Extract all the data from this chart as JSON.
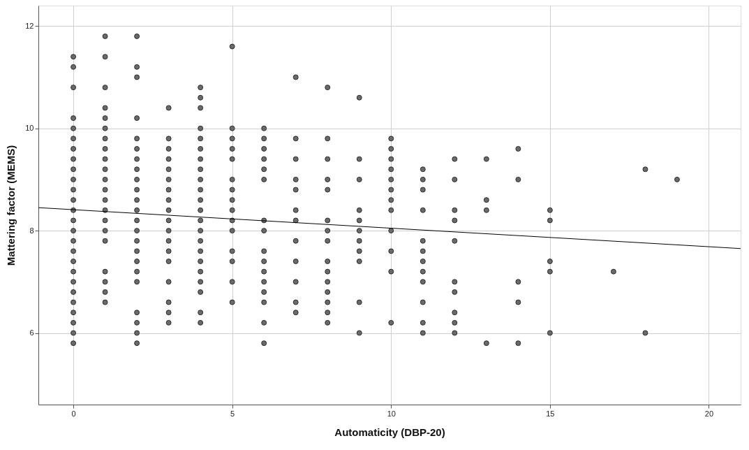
{
  "chart_data": {
    "type": "scatter",
    "xlabel": "Automaticity (DBP-20)",
    "ylabel": "Mattering factor (MEMS)",
    "xlim": [
      -1.1,
      21
    ],
    "ylim": [
      4.6,
      12.4
    ],
    "xticks": [
      0,
      5,
      10,
      15,
      20
    ],
    "yticks": [
      6,
      8,
      10,
      12
    ],
    "grid": true,
    "marker": "circle",
    "series": [
      {
        "color": "#6a6a6a",
        "x": [
          0,
          0,
          0,
          0,
          0,
          0,
          0,
          0,
          0,
          0,
          0,
          0,
          0,
          0,
          0,
          0,
          0,
          0,
          0,
          0,
          0,
          0,
          0,
          0,
          0,
          0,
          1,
          1,
          1,
          1,
          1,
          1,
          1,
          1,
          1,
          1,
          1,
          1,
          1,
          1,
          1,
          1,
          1,
          1,
          1,
          1,
          1,
          2,
          2,
          2,
          2,
          2,
          2,
          2,
          2,
          2,
          2,
          2,
          2,
          2,
          2,
          2,
          2,
          2,
          2,
          2,
          2,
          2,
          2,
          2,
          3,
          3,
          3,
          3,
          3,
          3,
          3,
          3,
          3,
          3,
          3,
          3,
          3,
          3,
          3,
          3,
          3,
          3,
          4,
          4,
          4,
          4,
          4,
          4,
          4,
          4,
          4,
          4,
          4,
          4,
          4,
          4,
          4,
          4,
          4,
          4,
          4,
          4,
          4,
          4,
          5,
          5,
          5,
          5,
          5,
          5,
          5,
          5,
          5,
          5,
          5,
          5,
          5,
          5,
          5,
          6,
          6,
          6,
          6,
          6,
          6,
          6,
          6,
          6,
          6,
          6,
          6,
          6,
          6,
          6,
          6,
          7,
          7,
          7,
          7,
          7,
          7,
          7,
          7,
          7,
          7,
          7,
          7,
          8,
          8,
          8,
          8,
          8,
          8,
          8,
          8,
          8,
          8,
          8,
          8,
          8,
          8,
          8,
          9,
          9,
          9,
          9,
          9,
          9,
          9,
          9,
          9,
          9,
          9,
          10,
          10,
          10,
          10,
          10,
          10,
          10,
          10,
          10,
          10,
          10,
          10,
          11,
          11,
          11,
          11,
          11,
          11,
          11,
          11,
          11,
          11,
          11,
          11,
          12,
          12,
          12,
          12,
          12,
          12,
          12,
          12,
          12,
          12,
          13,
          13,
          13,
          13,
          14,
          14,
          14,
          14,
          14,
          15,
          15,
          15,
          15,
          15,
          17,
          18,
          18,
          19
        ],
        "values": [
          11.4,
          11.2,
          10.8,
          10.2,
          10.0,
          9.8,
          9.6,
          9.4,
          9.2,
          9.0,
          8.8,
          8.6,
          8.4,
          8.2,
          8.0,
          7.8,
          7.6,
          7.4,
          7.2,
          7.0,
          6.8,
          6.6,
          6.4,
          6.2,
          6.0,
          5.8,
          11.8,
          11.4,
          10.8,
          10.4,
          10.2,
          10.0,
          9.8,
          9.6,
          9.4,
          9.2,
          9.0,
          8.8,
          8.6,
          8.4,
          8.2,
          8.0,
          7.8,
          7.2,
          7.0,
          6.8,
          6.6,
          11.8,
          11.2,
          11.0,
          10.2,
          9.8,
          9.6,
          9.4,
          9.2,
          9.0,
          8.8,
          8.6,
          8.4,
          8.2,
          8.0,
          7.8,
          7.6,
          7.4,
          7.2,
          7.0,
          6.4,
          6.2,
          6.0,
          5.8,
          10.4,
          9.8,
          9.6,
          9.4,
          9.2,
          9.0,
          8.8,
          8.6,
          8.4,
          8.2,
          8.0,
          7.8,
          7.6,
          7.4,
          7.0,
          6.6,
          6.4,
          6.2,
          10.8,
          10.6,
          10.4,
          10.0,
          9.8,
          9.6,
          9.4,
          9.2,
          9.0,
          8.8,
          8.6,
          8.4,
          8.2,
          8.0,
          7.8,
          7.6,
          7.4,
          7.2,
          7.0,
          6.8,
          6.4,
          6.2,
          11.6,
          10.0,
          9.8,
          9.6,
          9.4,
          9.0,
          8.8,
          8.6,
          8.4,
          8.2,
          8.0,
          7.6,
          7.4,
          7.0,
          6.6,
          10.0,
          9.8,
          9.6,
          9.4,
          9.2,
          9.0,
          8.2,
          8.0,
          7.6,
          7.4,
          7.2,
          7.0,
          6.8,
          6.6,
          6.2,
          5.8,
          11.0,
          9.8,
          9.4,
          9.0,
          8.8,
          8.4,
          8.2,
          7.8,
          7.4,
          7.0,
          6.6,
          6.4,
          10.8,
          9.8,
          9.4,
          9.0,
          8.8,
          8.2,
          8.0,
          7.8,
          7.4,
          7.2,
          7.0,
          6.8,
          6.6,
          6.4,
          6.2,
          10.6,
          9.4,
          9.0,
          8.4,
          8.2,
          8.0,
          7.8,
          7.6,
          7.4,
          6.6,
          6.0,
          9.8,
          9.6,
          9.4,
          9.2,
          9.0,
          8.8,
          8.6,
          8.4,
          8.0,
          7.6,
          7.2,
          6.2,
          9.2,
          9.0,
          8.8,
          8.4,
          7.8,
          7.6,
          7.4,
          7.2,
          7.0,
          6.6,
          6.2,
          6.0,
          9.4,
          9.0,
          8.4,
          8.2,
          7.8,
          7.0,
          6.8,
          6.4,
          6.2,
          6.0,
          9.4,
          8.6,
          8.4,
          5.8,
          9.6,
          9.0,
          7.0,
          6.6,
          5.8,
          8.4,
          8.2,
          7.4,
          7.2,
          6.0,
          7.2,
          9.2,
          6.0,
          9.0
        ]
      },
      {
        "type": "line",
        "color": "#000000",
        "marker": "none",
        "x": [
          -1.1,
          21
        ],
        "values": [
          8.45,
          7.65
        ]
      }
    ]
  }
}
